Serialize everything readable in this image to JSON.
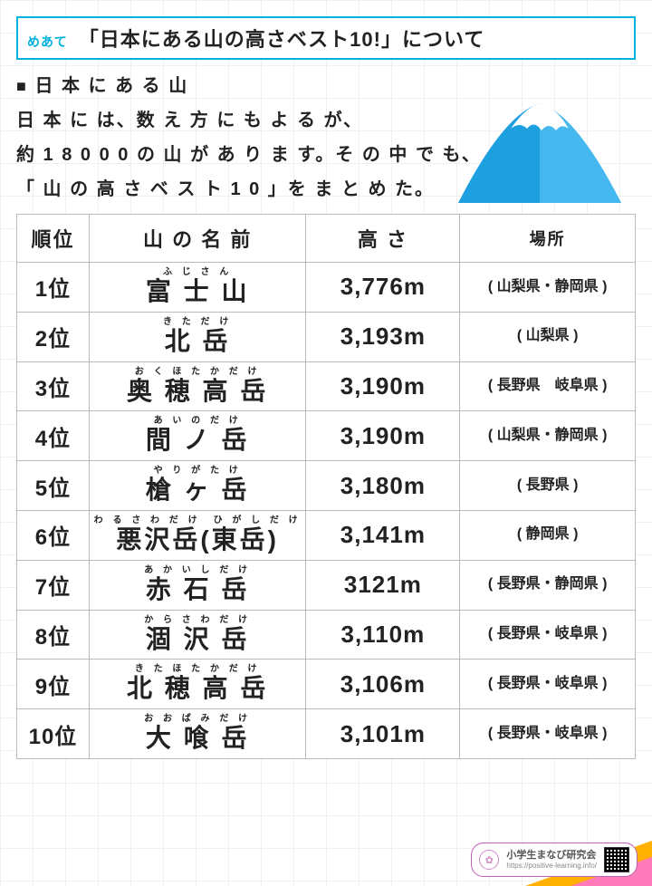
{
  "title": {
    "label": "めあて",
    "text": "「日本にある山の高さベスト10!」について"
  },
  "intro": {
    "heading_prefix": "■",
    "heading": "日 本 に あ る 山",
    "line1": "日 本 に は、数 え 方 に も よ る が、",
    "line2": "約 1 8 0 0 0 の 山 が あ り ま す。そ の 中 で も、",
    "line3": "「 山 の 高 さ ベ ス ト 1 0 」を ま と め た。"
  },
  "columns": {
    "rank": "順位",
    "name": "山 の 名 前",
    "height": "高 さ",
    "location": "場所"
  },
  "rows": [
    {
      "rank": "1位",
      "furigana": "ふ じ さ ん",
      "name": "富 士 山",
      "height": "3,776m",
      "location": "( 山梨県・静岡県 )"
    },
    {
      "rank": "2位",
      "furigana": "き た だ け",
      "name": "北 岳",
      "height": "3,193m",
      "location": "( 山梨県 )"
    },
    {
      "rank": "3位",
      "furigana": "お く ほ た か だ け",
      "name": "奥 穂 高 岳",
      "height": "3,190m",
      "location": "( 長野県　岐阜県 )"
    },
    {
      "rank": "4位",
      "furigana": "あ い の だ け",
      "name": "間 ノ 岳",
      "height": "3,190m",
      "location": "( 山梨県・静岡県 )"
    },
    {
      "rank": "5位",
      "furigana": "や り が た け",
      "name": "槍 ヶ 岳",
      "height": "3,180m",
      "location": "( 長野県 )"
    },
    {
      "rank": "6位",
      "furigana": "わ る さ わ だ け　ひ が し だ け",
      "name": "悪沢岳(東岳)",
      "height": "3,141m",
      "location": "( 静岡県 )"
    },
    {
      "rank": "7位",
      "furigana": "あ か い し だ け",
      "name": "赤 石 岳",
      "height": "3121m",
      "location": "( 長野県・静岡県 )"
    },
    {
      "rank": "8位",
      "furigana": "か ら さ わ だ け",
      "name": "涸 沢 岳",
      "height": "3,110m",
      "location": "( 長野県・岐阜県 )"
    },
    {
      "rank": "9位",
      "furigana": "き た ほ た か だ け",
      "name": "北 穂 高 岳",
      "height": "3,106m",
      "location": "( 長野県・岐阜県 )"
    },
    {
      "rank": "10位",
      "furigana": "お お ば み だ け",
      "name": "大 喰 岳",
      "height": "3,101m",
      "location": "( 長野県・岐阜県 )"
    }
  ],
  "mountain": {
    "body_color": "#1e9fe0",
    "body_color_light": "#45b8f0",
    "snow_color": "#ffffff"
  },
  "footer": {
    "org": "小学生まなび研究会",
    "url": "https://positive-learning.info/",
    "accent1": "#ffb000",
    "accent2": "#ff7ab8"
  }
}
